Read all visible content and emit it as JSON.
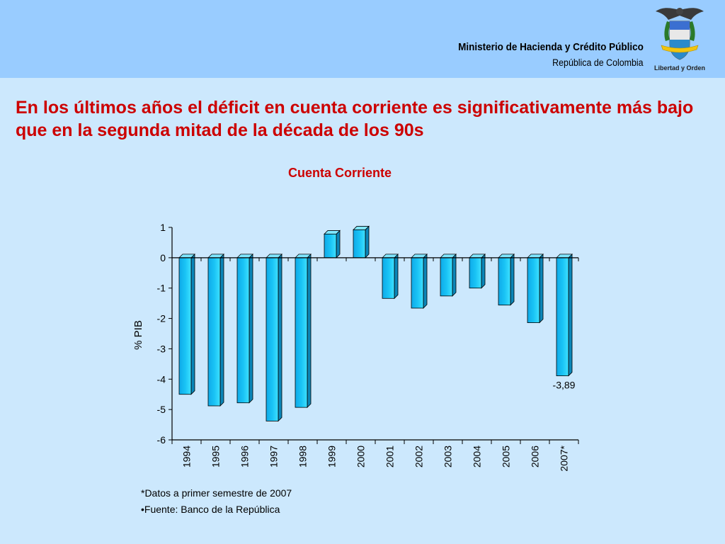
{
  "header": {
    "ministry": "Ministerio de Hacienda y Crédito Público",
    "republic": "República de Colombia",
    "logo_motto": "Libertad y Orden"
  },
  "slide_title": "En los últimos años el déficit en cuenta corriente es significativamente más bajo que en la segunda mitad de la década de los 90s",
  "chart_data": {
    "type": "bar",
    "title": "Cuenta Corriente",
    "ylabel": "% PIB",
    "xlabel": "",
    "categories": [
      "1994",
      "1995",
      "1996",
      "1997",
      "1998",
      "1999",
      "2000",
      "2001",
      "2002",
      "2003",
      "2004",
      "2005",
      "2006",
      "2007*"
    ],
    "values": [
      -4.5,
      -4.88,
      -4.78,
      -5.38,
      -4.93,
      0.78,
      0.92,
      -1.34,
      -1.66,
      -1.26,
      -1.0,
      -1.56,
      -2.14,
      -3.89
    ],
    "data_labels": [
      {
        "category": "2007*",
        "text": "-3,89"
      }
    ],
    "ylim": [
      -6,
      1
    ],
    "yticks": [
      1,
      0,
      -1,
      -2,
      -3,
      -4,
      -5,
      -6
    ],
    "grid": false,
    "bar_color": "#19c3f5"
  },
  "footnotes": {
    "note1": "*Datos a primer semestre de 2007",
    "note2": "•Fuente: Banco de la República"
  }
}
